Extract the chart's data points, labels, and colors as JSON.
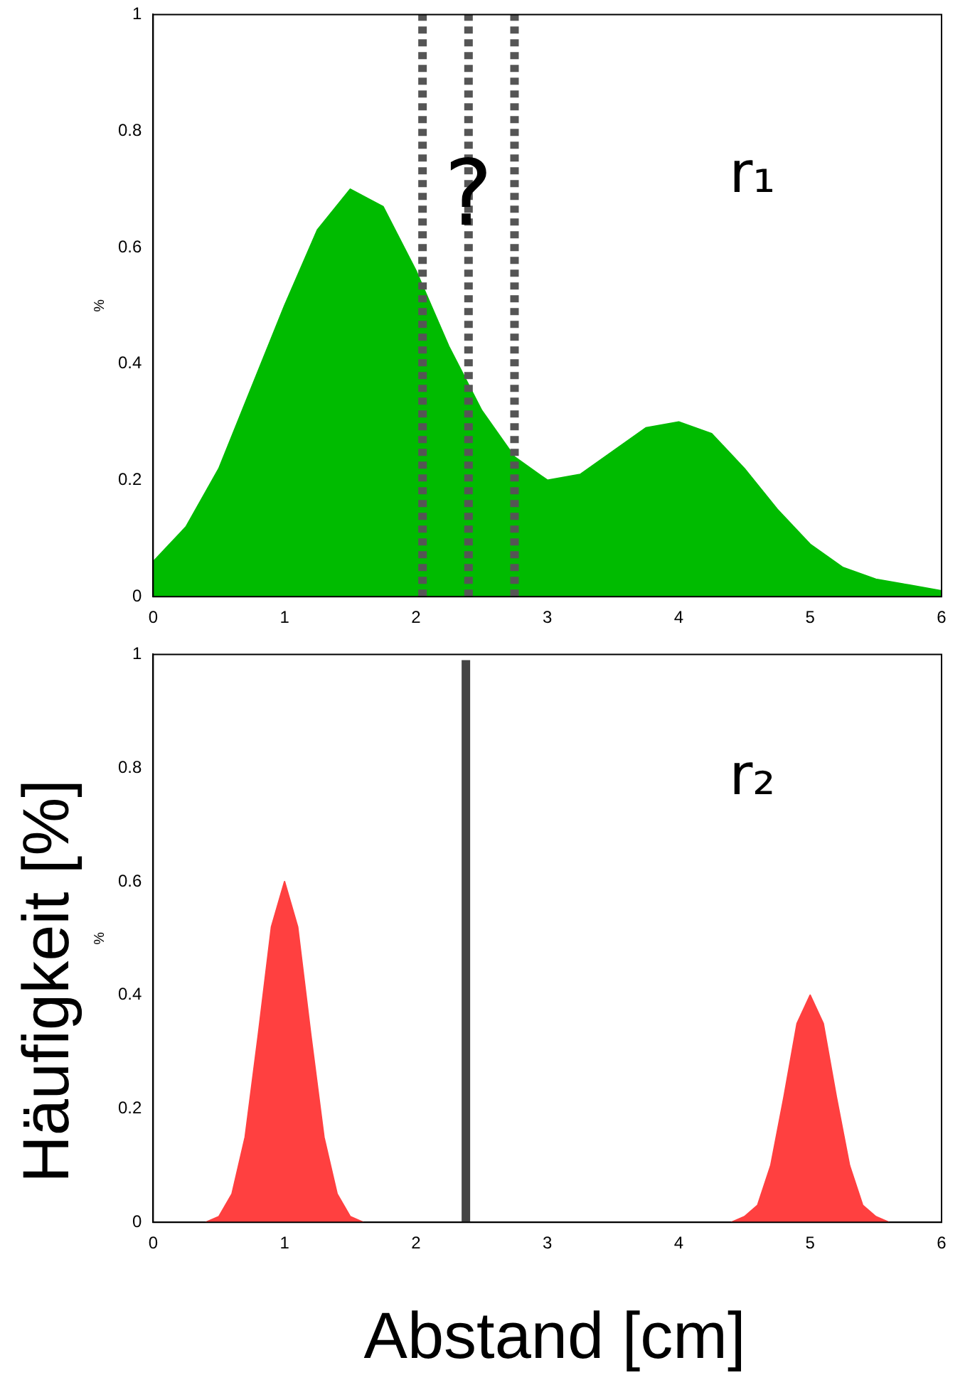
{
  "chart_data": [
    {
      "type": "area",
      "ylabel": "%",
      "xlim": [
        0,
        6
      ],
      "xticks": [
        0,
        1,
        2,
        3,
        4,
        5,
        6
      ],
      "ylim": [
        0,
        1
      ],
      "yticks": [
        0,
        0.2,
        0.4,
        0.6,
        0.8,
        1
      ],
      "grid": false,
      "legend": false,
      "series": [
        {
          "color": "#00bb00",
          "x": [
            0,
            0.25,
            0.5,
            0.75,
            1,
            1.25,
            1.5,
            1.75,
            2,
            2.25,
            2.5,
            2.75,
            3,
            3.25,
            3.5,
            3.75,
            4,
            4.25,
            4.5,
            4.75,
            5,
            5.25,
            5.5,
            5.75,
            6
          ],
          "values": [
            0.06,
            0.12,
            0.22,
            0.36,
            0.5,
            0.63,
            0.7,
            0.67,
            0.56,
            0.43,
            0.32,
            0.24,
            0.2,
            0.21,
            0.25,
            0.29,
            0.3,
            0.28,
            0.22,
            0.15,
            0.09,
            0.05,
            0.03,
            0.02,
            0.01
          ]
        }
      ],
      "ref_lines": [
        {
          "axis": "x",
          "value": 2.05,
          "color": "#555555",
          "line_style": "dotted"
        },
        {
          "axis": "x",
          "value": 2.4,
          "color": "#555555",
          "line_style": "dotted"
        },
        {
          "axis": "x",
          "value": 2.75,
          "color": "#555555",
          "line_style": "dotted"
        }
      ],
      "annotations": [
        "?",
        "r₁"
      ]
    },
    {
      "type": "area",
      "ylabel": "%",
      "xlabel": "Abstand [cm]",
      "xlim": [
        0,
        6
      ],
      "xticks": [
        0,
        1,
        2,
        3,
        4,
        5,
        6
      ],
      "ylim": [
        0,
        1
      ],
      "yticks": [
        0,
        0.2,
        0.4,
        0.6,
        0.8,
        1
      ],
      "grid": false,
      "legend": false,
      "series": [
        {
          "color": "#ff4040",
          "x": [
            0.4,
            0.5,
            0.6,
            0.7,
            0.8,
            0.9,
            1,
            1.1,
            1.2,
            1.3,
            1.4,
            1.5,
            1.6
          ],
          "values": [
            0,
            0.01,
            0.05,
            0.15,
            0.33,
            0.52,
            0.6,
            0.52,
            0.33,
            0.15,
            0.05,
            0.01,
            0
          ]
        },
        {
          "color": "#ff4040",
          "x": [
            4.4,
            4.5,
            4.6,
            4.7,
            4.8,
            4.9,
            5,
            5.1,
            5.2,
            5.3,
            5.4,
            5.5,
            5.6
          ],
          "values": [
            0,
            0.01,
            0.03,
            0.1,
            0.22,
            0.35,
            0.4,
            0.35,
            0.22,
            0.1,
            0.03,
            0.01,
            0
          ]
        }
      ],
      "ref_lines": [
        {
          "axis": "x",
          "value": 2.38,
          "color": "#444444",
          "line_style": "solid"
        }
      ],
      "annotations": [
        "r₂",
        "Häufigkeit [%]"
      ]
    }
  ]
}
